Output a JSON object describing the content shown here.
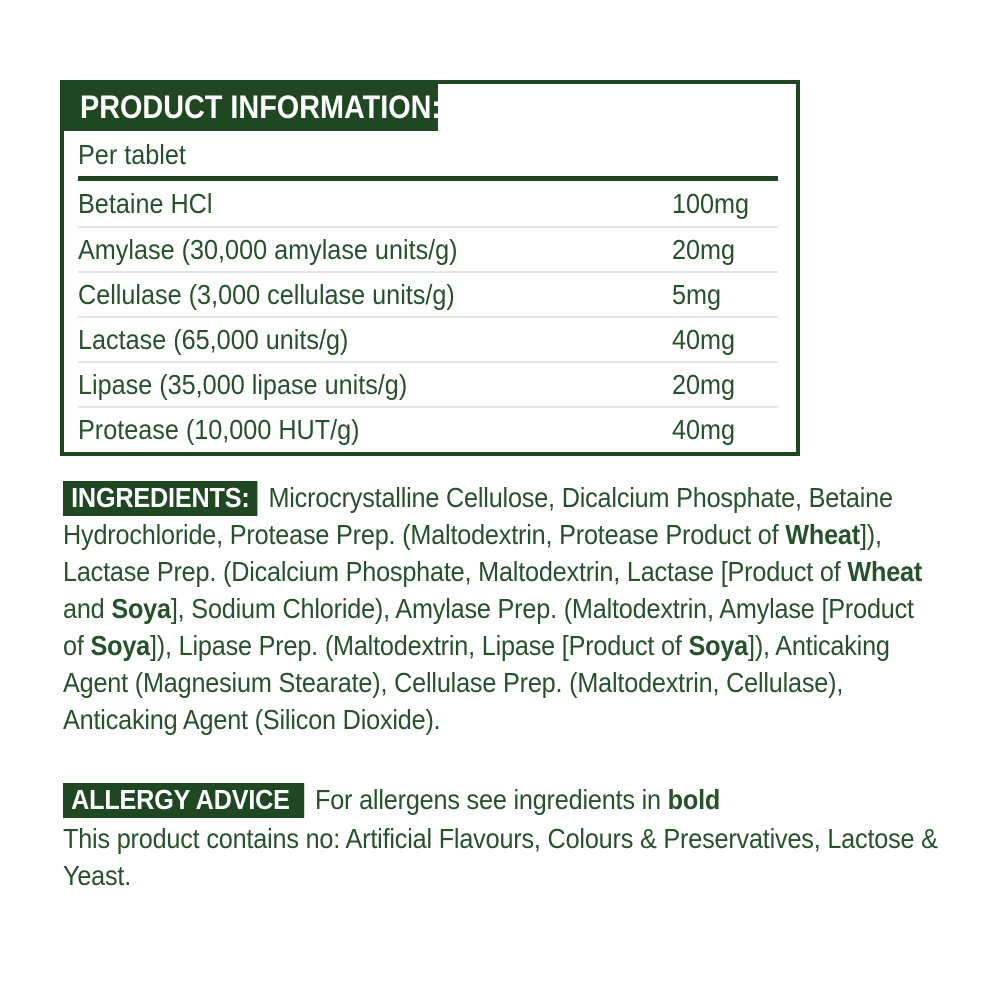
{
  "colors": {
    "dark_green": "#1e4722",
    "text_green": "#26522b",
    "separator_gray": "#e3e7e2",
    "white": "#ffffff"
  },
  "product_info": {
    "header": "PRODUCT INFORMATION:",
    "serving": "Per tablet",
    "rows": [
      {
        "name": "Betaine HCl",
        "amount": "100mg"
      },
      {
        "name": "Amylase (30,000 amylase units/g)",
        "amount": "20mg"
      },
      {
        "name": "Cellulase (3,000 cellulase units/g)",
        "amount": "5mg"
      },
      {
        "name": "Lactase (65,000 units/g)",
        "amount": "40mg"
      },
      {
        "name": "Lipase (35,000 lipase units/g)",
        "amount": "20mg"
      },
      {
        "name": "Protease (10,000 HUT/g)",
        "amount": "40mg"
      }
    ]
  },
  "ingredients": {
    "label": "INGREDIENTS:",
    "segments": [
      {
        "text": "Microcrystalline Cellulose, Dicalcium Phosphate, Betaine Hydrochloride, Protease Prep. (Maltodextrin, Protease Product of ",
        "bold": false
      },
      {
        "text": "Wheat",
        "bold": true
      },
      {
        "text": "]), Lactase Prep. (Dicalcium Phosphate, Maltodextrin, Lactase [Product of ",
        "bold": false
      },
      {
        "text": "Wheat",
        "bold": true
      },
      {
        "text": " and ",
        "bold": false
      },
      {
        "text": "Soya",
        "bold": true
      },
      {
        "text": "], Sodium Chloride), Amylase Prep. (Maltodextrin, Amylase [Product of ",
        "bold": false
      },
      {
        "text": "Soya",
        "bold": true
      },
      {
        "text": "]), Lipase Prep. (Maltodextrin, Lipase [Product of ",
        "bold": false
      },
      {
        "text": "Soya",
        "bold": true
      },
      {
        "text": "]), Anticaking Agent (Magnesium Stearate), Cellulase Prep. (Maltodextrin, Cellulase), Anticaking Agent (Silicon Dioxide).",
        "bold": false
      }
    ]
  },
  "allergy": {
    "label": "ALLERGY ADVICE",
    "segments": [
      {
        "text": "For allergens see ingredients in ",
        "bold": false
      },
      {
        "text": "bold",
        "bold": true
      }
    ]
  },
  "contains": "This product contains no: Artificial Flavours, Colours & Preservatives, Lactose & Yeast."
}
